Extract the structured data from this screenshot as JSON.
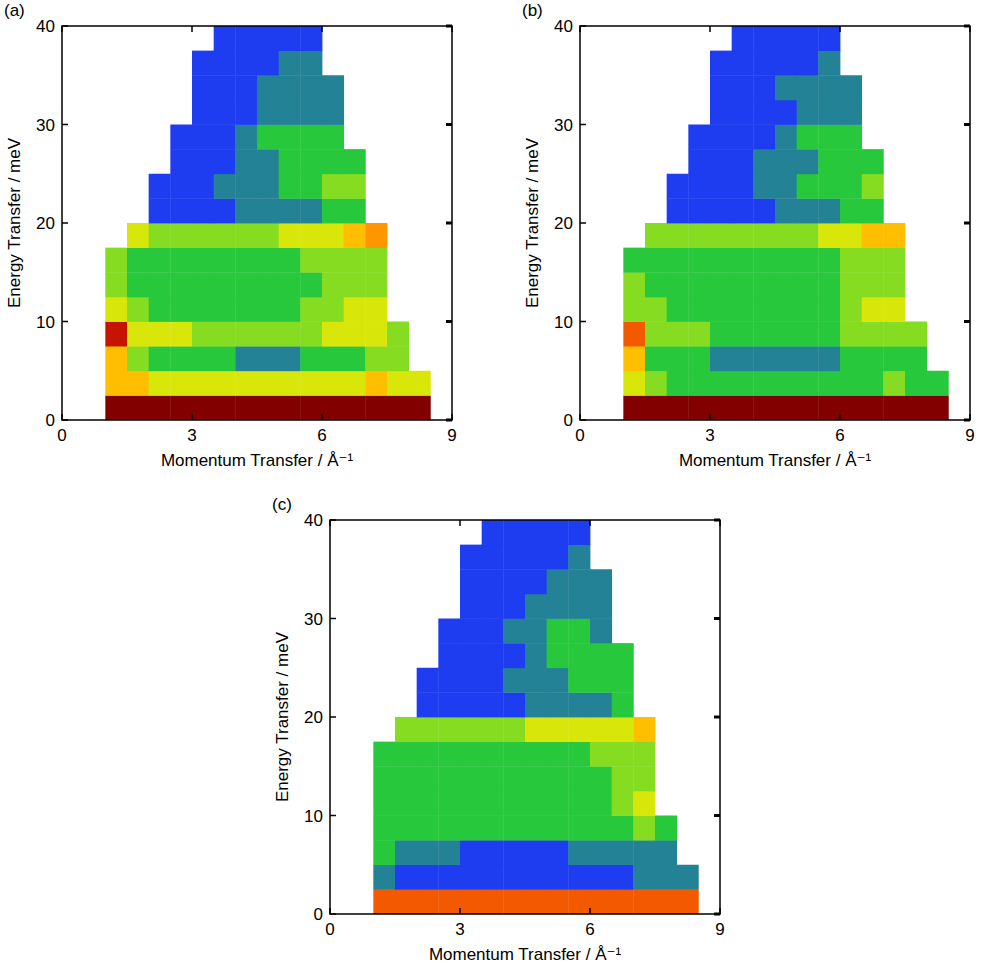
{
  "chart_data": [
    {
      "type": "heatmap",
      "title": "(a)",
      "x_label": "Momentum Transfer / Å⁻¹",
      "y_label": "Energy Transfer / meV",
      "xlim": [
        0,
        9
      ],
      "ylim": [
        0,
        40
      ],
      "xticks": [
        0,
        3,
        6,
        9
      ],
      "yticks": [
        0,
        10,
        20,
        30,
        40
      ],
      "zlim": [
        0,
        10
      ],
      "x_edges": [
        1,
        1.5,
        2,
        2.5,
        3,
        3.5,
        4,
        4.5,
        5,
        5.5,
        6,
        6.5,
        7,
        7.5,
        8,
        8.5
      ],
      "y_edges": [
        0,
        2.5,
        5,
        7.5,
        10,
        12.5,
        15,
        17.5,
        20,
        22.5,
        25,
        27.5,
        30,
        32.5,
        35,
        37.5,
        40
      ],
      "cells": [
        [
          10,
          10,
          10,
          10,
          10,
          10,
          10,
          10,
          10,
          10,
          10,
          10,
          10,
          10,
          10
        ],
        [
          7,
          7,
          6,
          6,
          6,
          6,
          6,
          6,
          6,
          6,
          6,
          6,
          7,
          6,
          6
        ],
        [
          7,
          5,
          4,
          4,
          4,
          4,
          3,
          3,
          3,
          4,
          4,
          4,
          5,
          5,
          null
        ],
        [
          9,
          6,
          6,
          6,
          5,
          5,
          5,
          5,
          5,
          5,
          6,
          6,
          6,
          5,
          null
        ],
        [
          6,
          5,
          4,
          4,
          4,
          4,
          4,
          4,
          4,
          5,
          5,
          6,
          6,
          null,
          null
        ],
        [
          5,
          4,
          4,
          4,
          4,
          4,
          4,
          4,
          4,
          4,
          5,
          5,
          5,
          null,
          null
        ],
        [
          5,
          4,
          4,
          4,
          4,
          4,
          4,
          4,
          4,
          5,
          5,
          5,
          5,
          null,
          null
        ],
        [
          null,
          6,
          5,
          5,
          5,
          5,
          5,
          5,
          6,
          6,
          6,
          7,
          7.5,
          null,
          null
        ],
        [
          null,
          null,
          2,
          2,
          2,
          2,
          3,
          3,
          3,
          3,
          4,
          4,
          null,
          null,
          null
        ],
        [
          null,
          null,
          2,
          2,
          2,
          3,
          3,
          3,
          4,
          4,
          5,
          5,
          null,
          null,
          null
        ],
        [
          null,
          null,
          null,
          2,
          2,
          2,
          3,
          3,
          4,
          4,
          4,
          4,
          null,
          null,
          null
        ],
        [
          null,
          null,
          null,
          2,
          2,
          2,
          3,
          4,
          4,
          4,
          4,
          null,
          null,
          null,
          null
        ],
        [
          null,
          null,
          null,
          null,
          2,
          2,
          2,
          3,
          3,
          3,
          3,
          null,
          null,
          null,
          null
        ],
        [
          null,
          null,
          null,
          null,
          2,
          2,
          2,
          3,
          3,
          3,
          3,
          null,
          null,
          null,
          null
        ],
        [
          null,
          null,
          null,
          null,
          2,
          2,
          2,
          2,
          3,
          3,
          null,
          null,
          null,
          null,
          null
        ],
        [
          null,
          null,
          null,
          null,
          null,
          2,
          2,
          2,
          2,
          2,
          null,
          null,
          null,
          null,
          null
        ]
      ]
    },
    {
      "type": "heatmap",
      "title": "(b)",
      "x_label": "Momentum Transfer / Å⁻¹",
      "y_label": "Energy Transfer / meV",
      "xlim": [
        0,
        9
      ],
      "ylim": [
        0,
        40
      ],
      "xticks": [
        0,
        3,
        6,
        9
      ],
      "yticks": [
        0,
        10,
        20,
        30,
        40
      ],
      "zlim": [
        0,
        10
      ],
      "x_edges": [
        1,
        1.5,
        2,
        2.5,
        3,
        3.5,
        4,
        4.5,
        5,
        5.5,
        6,
        6.5,
        7,
        7.5,
        8,
        8.5
      ],
      "y_edges": [
        0,
        2.5,
        5,
        7.5,
        10,
        12.5,
        15,
        17.5,
        20,
        22.5,
        25,
        27.5,
        30,
        32.5,
        35,
        37.5,
        40
      ],
      "cells": [
        [
          10,
          10,
          10,
          10,
          10,
          10,
          10,
          10,
          10,
          10,
          10,
          10,
          10,
          10,
          10
        ],
        [
          6,
          5,
          4,
          4,
          4,
          4,
          4,
          4,
          4,
          4,
          4,
          4,
          5,
          4,
          4
        ],
        [
          7,
          4,
          4,
          4,
          3,
          3,
          3,
          3,
          3,
          3,
          4,
          4,
          4,
          4,
          null
        ],
        [
          8,
          5,
          5,
          5,
          4,
          4,
          4,
          4,
          4,
          4,
          5,
          5,
          5,
          5,
          null
        ],
        [
          5,
          5,
          4,
          4,
          4,
          4,
          4,
          4,
          4,
          4,
          5,
          6,
          6,
          null,
          null
        ],
        [
          5,
          4,
          4,
          4,
          4,
          4,
          4,
          4,
          4,
          4,
          5,
          5,
          5,
          null,
          null
        ],
        [
          4,
          4,
          4,
          4,
          4,
          4,
          4,
          4,
          4,
          4,
          5,
          5,
          5,
          null,
          null
        ],
        [
          null,
          5,
          5,
          5,
          5,
          5,
          5,
          5,
          5,
          6,
          6,
          7,
          7,
          null,
          null
        ],
        [
          null,
          null,
          2,
          2,
          2,
          2,
          2,
          3,
          3,
          3,
          4,
          4,
          null,
          null,
          null
        ],
        [
          null,
          null,
          2,
          2,
          2,
          2,
          3,
          3,
          4,
          4,
          4,
          5,
          null,
          null,
          null
        ],
        [
          null,
          null,
          null,
          2,
          2,
          2,
          3,
          3,
          3,
          4,
          4,
          4,
          null,
          null,
          null
        ],
        [
          null,
          null,
          null,
          2,
          2,
          2,
          2,
          3,
          4,
          4,
          4,
          null,
          null,
          null,
          null
        ],
        [
          null,
          null,
          null,
          null,
          2,
          2,
          2,
          2,
          3,
          3,
          3,
          null,
          null,
          null,
          null
        ],
        [
          null,
          null,
          null,
          null,
          2,
          2,
          2,
          3,
          3,
          3,
          3,
          null,
          null,
          null,
          null
        ],
        [
          null,
          null,
          null,
          null,
          2,
          2,
          2,
          2,
          2,
          3,
          null,
          null,
          null,
          null,
          null
        ],
        [
          null,
          null,
          null,
          null,
          null,
          2,
          2,
          2,
          2,
          2,
          null,
          null,
          null,
          null,
          null
        ]
      ]
    },
    {
      "type": "heatmap",
      "title": "(c)",
      "x_label": "Momentum Transfer / Å⁻¹",
      "y_label": "Energy Transfer / meV",
      "xlim": [
        0,
        9
      ],
      "ylim": [
        0,
        40
      ],
      "xticks": [
        0,
        3,
        6,
        9
      ],
      "yticks": [
        0,
        10,
        20,
        30,
        40
      ],
      "zlim": [
        0,
        10
      ],
      "x_edges": [
        1,
        1.5,
        2,
        2.5,
        3,
        3.5,
        4,
        4.5,
        5,
        5.5,
        6,
        6.5,
        7,
        7.5,
        8,
        8.5
      ],
      "y_edges": [
        0,
        2.5,
        5,
        7.5,
        10,
        12.5,
        15,
        17.5,
        20,
        22.5,
        25,
        27.5,
        30,
        32.5,
        35,
        37.5,
        40
      ],
      "cells": [
        [
          8,
          8,
          8,
          8,
          8,
          8,
          8,
          8,
          8,
          8,
          8,
          8,
          8,
          8,
          8
        ],
        [
          3,
          2,
          2,
          2,
          2,
          2,
          2,
          2,
          2,
          2,
          2,
          2,
          3,
          3,
          3
        ],
        [
          4,
          3,
          3,
          3,
          2,
          2,
          2,
          2,
          2,
          3,
          3,
          3,
          3,
          3,
          null
        ],
        [
          4,
          4,
          4,
          4,
          4,
          4,
          4,
          4,
          4,
          4,
          4,
          4,
          5,
          4,
          null
        ],
        [
          4,
          4,
          4,
          4,
          4,
          4,
          4,
          4,
          4,
          4,
          4,
          5,
          6,
          null,
          null
        ],
        [
          4,
          4,
          4,
          4,
          4,
          4,
          4,
          4,
          4,
          4,
          4,
          5,
          5,
          null,
          null
        ],
        [
          4,
          4,
          4,
          4,
          4,
          4,
          4,
          4,
          4,
          4,
          5,
          5,
          5,
          null,
          null
        ],
        [
          null,
          5,
          5,
          5,
          5,
          5,
          5,
          6,
          6,
          6,
          6,
          6,
          7,
          null,
          null
        ],
        [
          null,
          null,
          2,
          2,
          2,
          2,
          2,
          3,
          3,
          3,
          3,
          4,
          null,
          null,
          null
        ],
        [
          null,
          null,
          2,
          2,
          2,
          2,
          3,
          3,
          3,
          4,
          4,
          4,
          null,
          null,
          null
        ],
        [
          null,
          null,
          null,
          2,
          2,
          2,
          2,
          3,
          4,
          4,
          4,
          4,
          null,
          null,
          null
        ],
        [
          null,
          null,
          null,
          2,
          2,
          2,
          3,
          3,
          4,
          4,
          3,
          null,
          null,
          null,
          null
        ],
        [
          null,
          null,
          null,
          null,
          2,
          2,
          2,
          3,
          3,
          3,
          3,
          null,
          null,
          null,
          null
        ],
        [
          null,
          null,
          null,
          null,
          2,
          2,
          2,
          2,
          3,
          3,
          3,
          null,
          null,
          null,
          null
        ],
        [
          null,
          null,
          null,
          null,
          2,
          2,
          2,
          2,
          2,
          3,
          null,
          null,
          null,
          null,
          null
        ],
        [
          null,
          null,
          null,
          null,
          null,
          2,
          2,
          2,
          2,
          2,
          null,
          null,
          null,
          null,
          null
        ]
      ]
    }
  ]
}
